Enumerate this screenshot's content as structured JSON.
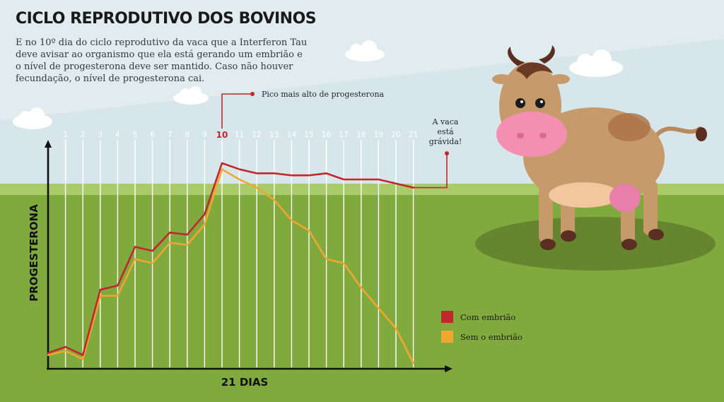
{
  "title": "CICLO REPRODUTIVO DOS BOVINOS",
  "intro": "E  no 10º dia do ciclo reprodutivo da vaca que a Interferon Tau deve avisar ao organismo que ela está gerando um embrião e o nível de progesterona deve ser mantido. Caso não houver fecundação, o nível de progesterona cai.",
  "colors": {
    "sky": "#d7e6ea",
    "grass_light": "#a9cb6a",
    "grass": "#80a93e",
    "com_embriao": "#c1272d",
    "sem_embriao": "#f2a62f",
    "highlight_day": "#c1272d"
  },
  "icons": [
    "cow-illustration",
    "cloud-icon"
  ],
  "annotations": {
    "peak": "Pico mais alto de progesterona",
    "pregnant": [
      "A vaca",
      "está",
      "grávida!"
    ]
  },
  "chart_data": {
    "type": "line",
    "xlabel": "21 DIAS",
    "ylabel": "PROGESTERONA",
    "x": [
      0,
      1,
      2,
      3,
      4,
      5,
      6,
      7,
      8,
      9,
      10,
      11,
      12,
      13,
      14,
      15,
      16,
      17,
      18,
      19,
      20,
      21
    ],
    "tick_labels": [
      "1",
      "2",
      "3",
      "4",
      "5",
      "6",
      "7",
      "8",
      "9",
      "10",
      "11",
      "12",
      "13",
      "14",
      "15",
      "16",
      "17",
      "18",
      "19",
      "20",
      "21"
    ],
    "highlight_tick": "10",
    "ylim": [
      0,
      100
    ],
    "grid": "vertical",
    "legend_position": "bottom-right",
    "series": [
      {
        "name": "Com embrião",
        "color": "#c1272d",
        "values": [
          6,
          9,
          5,
          37,
          39,
          58,
          56,
          65,
          64,
          74,
          99,
          96,
          94,
          94,
          93,
          93,
          94,
          91,
          91,
          91,
          89,
          87
        ]
      },
      {
        "name": "Sem o embrião",
        "color": "#f2a62f",
        "values": [
          5,
          7,
          3,
          34,
          34,
          52,
          50,
          60,
          59,
          69,
          96,
          91,
          87,
          81,
          71,
          66,
          52,
          50,
          38,
          28,
          18,
          1
        ]
      }
    ]
  }
}
